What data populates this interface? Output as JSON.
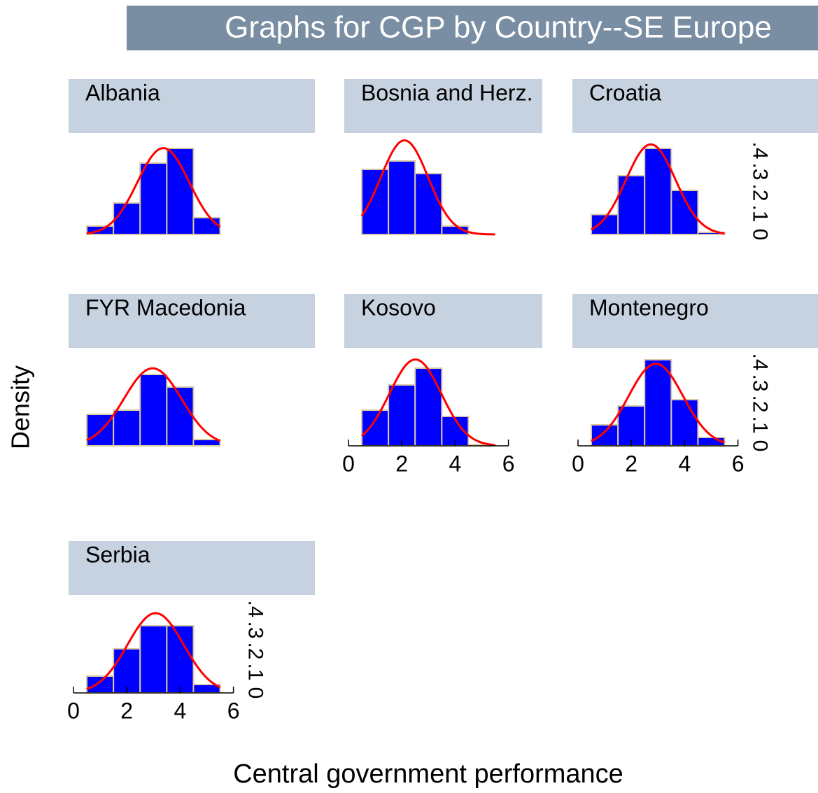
{
  "chart_data": {
    "type": "histogram",
    "title": "Graphs for CGP by Country--SE Europe",
    "xlabel": "Central government performance",
    "ylabel": "Density",
    "bins": [
      0.5,
      1.5,
      2.5,
      3.5,
      4.5,
      5.5
    ],
    "xlim": [
      0,
      6
    ],
    "xticks": [
      0,
      2,
      4,
      6
    ],
    "ylim": [
      0,
      0.46
    ],
    "yticks": [
      0,
      {
        "value": 0.1,
        "label": ".1"
      },
      {
        "value": 0.2,
        "label": ".2"
      },
      {
        "value": 0.3,
        "label": ".3"
      },
      {
        "value": 0.4,
        "label": ".4"
      }
    ],
    "bar_color": "#0000ff",
    "curve_color": "#ff0000",
    "panels": [
      {
        "name": "Albania",
        "counts": [
          0.04,
          0.15,
          0.34,
          0.41,
          0.08
        ],
        "mean": 3.37,
        "sd": 0.97
      },
      {
        "name": "Bosnia and Herz.",
        "counts": [
          0.31,
          0.35,
          0.29,
          0.04,
          0
        ],
        "mean": 2.1,
        "sd": 0.89
      },
      {
        "name": "Croatia",
        "counts": [
          0.095,
          0.28,
          0.41,
          0.21,
          0.01
        ],
        "mean": 2.73,
        "sd": 0.93
      },
      {
        "name": "FYR Macedonia",
        "counts": [
          0.15,
          0.17,
          0.34,
          0.28,
          0.03
        ],
        "mean": 2.97,
        "sd": 1.08
      },
      {
        "name": "Kosovo",
        "counts": [
          0.17,
          0.29,
          0.37,
          0.14,
          0.005
        ],
        "mean": 2.51,
        "sd": 0.97
      },
      {
        "name": "Montenegro",
        "counts": [
          0.1,
          0.19,
          0.41,
          0.22,
          0.04
        ],
        "mean": 2.92,
        "sd": 1.02
      },
      {
        "name": "Serbia",
        "counts": [
          0.08,
          0.21,
          0.32,
          0.32,
          0.04
        ],
        "mean": 3.08,
        "sd": 1.05
      }
    ]
  }
}
